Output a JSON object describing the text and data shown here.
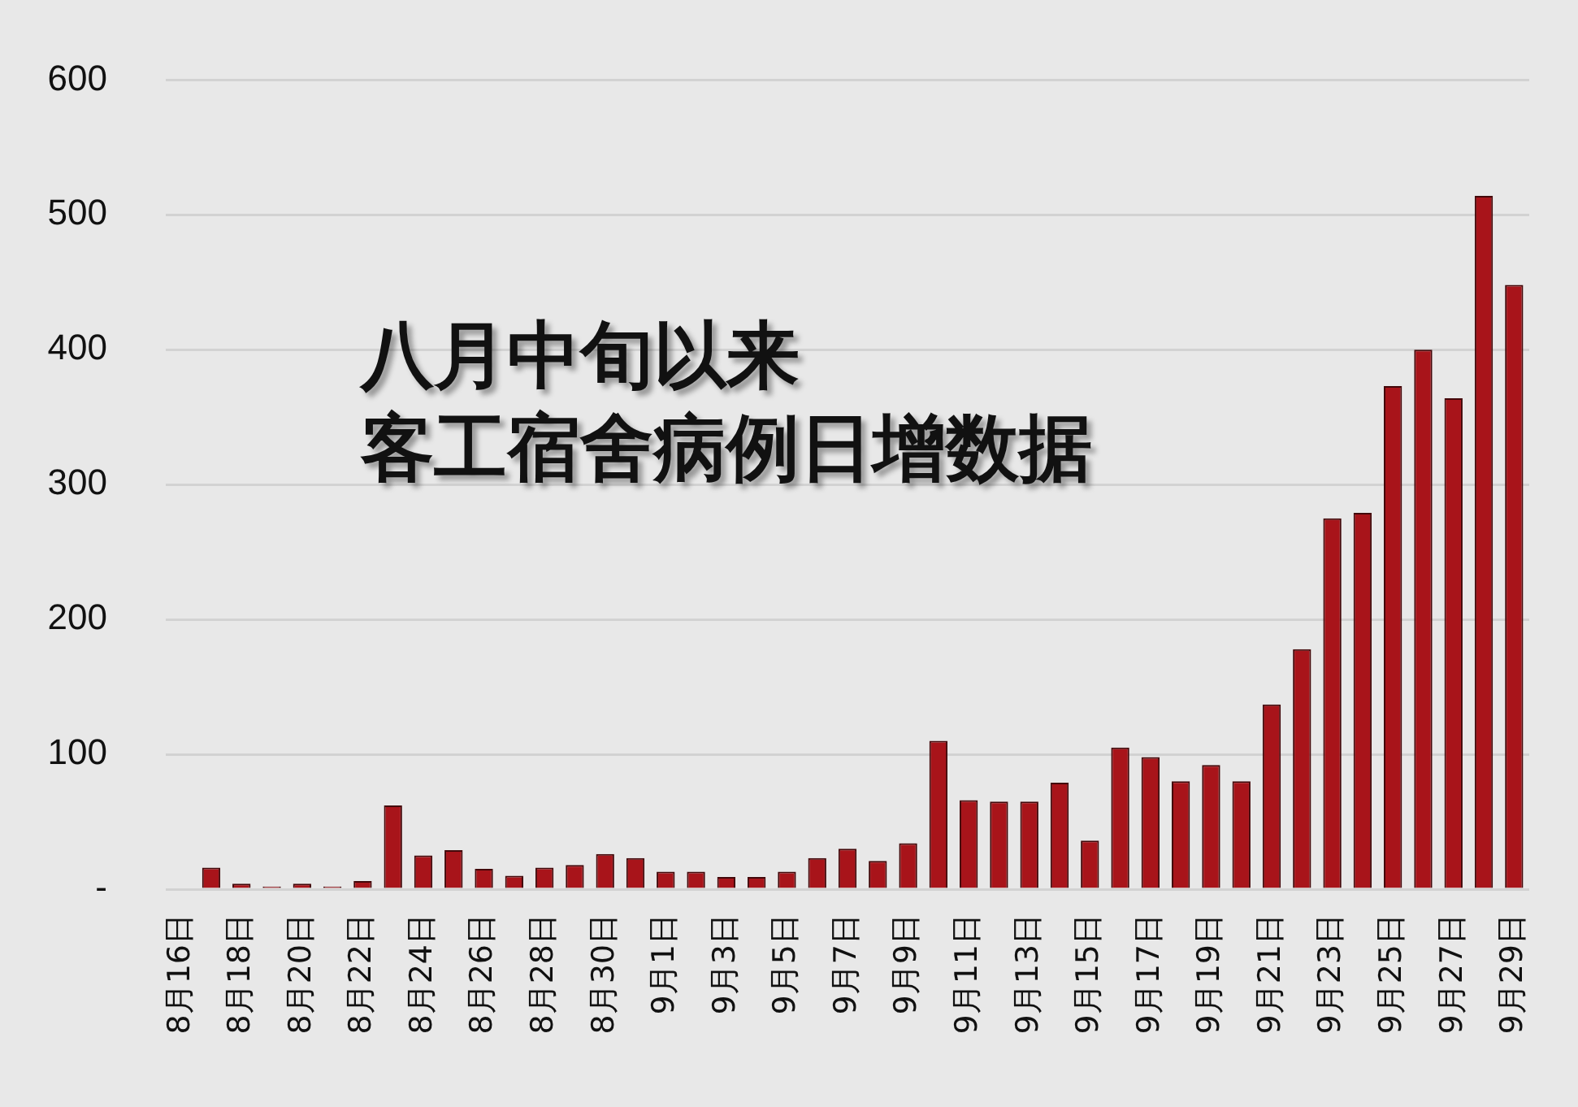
{
  "chart_data": {
    "type": "bar",
    "title": "八月中旬以来",
    "subtitle": "客工宿舍病例日增数据",
    "categories": [
      "8月16日",
      null,
      "8月18日",
      null,
      "8月20日",
      null,
      "8月22日",
      null,
      "8月24日",
      null,
      "8月26日",
      null,
      "8月28日",
      null,
      "8月30日",
      null,
      "9月1日",
      null,
      "9月3日",
      null,
      "9月5日",
      null,
      "9月7日",
      null,
      "9月9日",
      null,
      "9月11日",
      null,
      "9月13日",
      null,
      "9月15日",
      null,
      "9月17日",
      null,
      "9月19日",
      null,
      "9月21日",
      null,
      "9月23日",
      null,
      "9月25日",
      null,
      "9月27日",
      null,
      "9月29日"
    ],
    "values": [
      0,
      16,
      4,
      2,
      4,
      2,
      6,
      62,
      25,
      29,
      15,
      10,
      16,
      18,
      26,
      23,
      13,
      13,
      9,
      9,
      13,
      23,
      30,
      21,
      34,
      110,
      66,
      65,
      65,
      79,
      36,
      105,
      98,
      80,
      92,
      80,
      137,
      178,
      275,
      279,
      373,
      400,
      364,
      514,
      448
    ],
    "color": "#a8141a",
    "ylim": [
      0,
      600
    ],
    "yticks": [
      {
        "value": 0,
        "label": "-"
      },
      100,
      200,
      300,
      400,
      500,
      600
    ],
    "grid": "y"
  }
}
